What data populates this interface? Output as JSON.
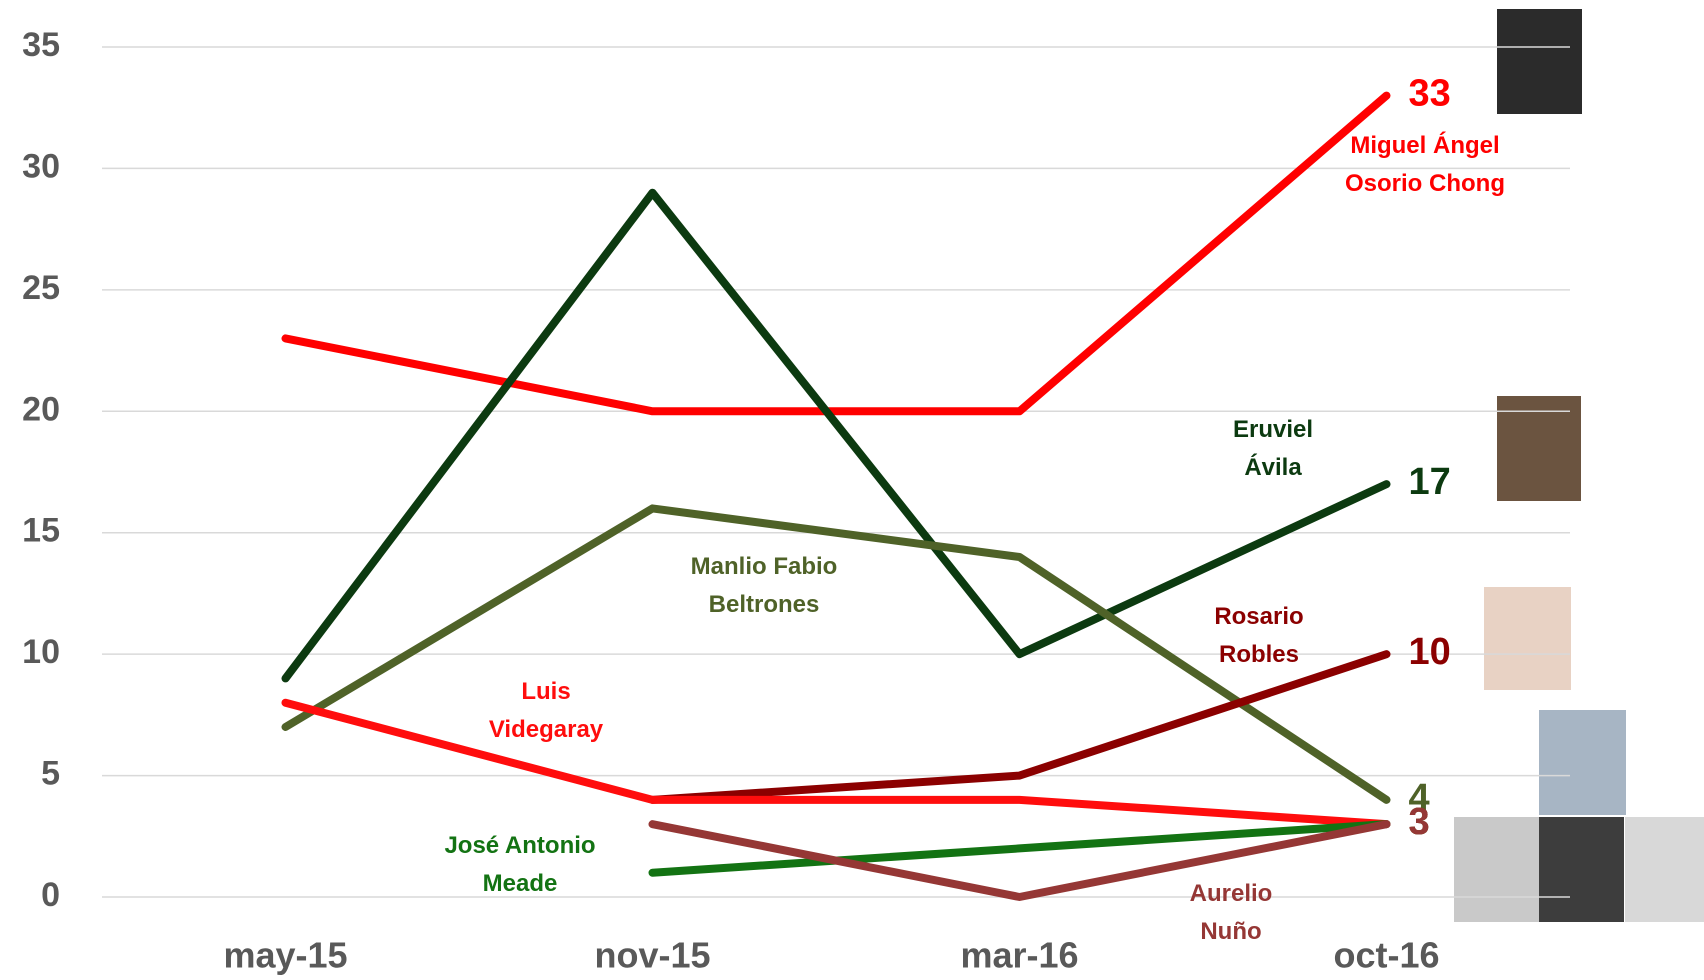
{
  "chart_data": {
    "type": "line",
    "categories": [
      "may-15",
      "nov-15",
      "mar-16",
      "oct-16"
    ],
    "series": [
      {
        "name": "Miguel Ángel Osorio Chong",
        "color": "#ff0000",
        "values": [
          23,
          20,
          20,
          33
        ]
      },
      {
        "name": "Eruviel Ávila",
        "color": "#0c3a10",
        "values": [
          9,
          29,
          10,
          17
        ]
      },
      {
        "name": "Manlio Fabio Beltrones",
        "color": "#4f6228",
        "values": [
          7,
          16,
          14,
          4
        ]
      },
      {
        "name": "Rosario Robles",
        "color": "#8b0000",
        "values": [
          null,
          4,
          5,
          10
        ]
      },
      {
        "name": "Luis Videgaray",
        "color": "#ff0d0d",
        "values": [
          8,
          4,
          4,
          3
        ]
      },
      {
        "name": "José Antonio Meade",
        "color": "#137313",
        "values": [
          null,
          1,
          2,
          3
        ]
      },
      {
        "name": "Aurelio Nuño",
        "color": "#953735",
        "values": [
          null,
          3,
          0,
          3
        ]
      }
    ],
    "ylim": [
      0,
      35
    ],
    "yticks": [
      0,
      5,
      10,
      15,
      20,
      25,
      30,
      35
    ],
    "grid": true
  }
}
